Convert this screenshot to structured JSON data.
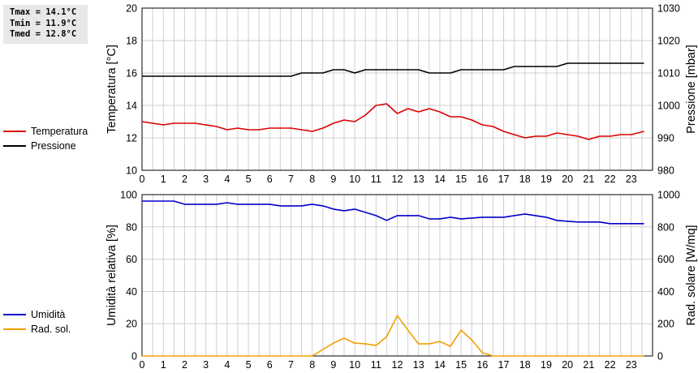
{
  "stats": {
    "tmax": "Tmax = 14.1°C",
    "tmin": "Tmin = 11.9°C",
    "tmed": "Tmed = 12.8°C"
  },
  "legend_top": [
    {
      "label": "Temperatura",
      "color": "#dd0000"
    },
    {
      "label": "Pressione",
      "color": "#000000"
    }
  ],
  "legend_bottom": [
    {
      "label": "Umidità",
      "color": "#0000cc"
    },
    {
      "label": "Rad. sol.",
      "color": "#f0a000"
    }
  ],
  "chart_data": [
    {
      "type": "line",
      "xlabel": "",
      "xlim": [
        0,
        24
      ],
      "xticks": [
        "0",
        "1",
        "2",
        "3",
        "4",
        "5",
        "6",
        "7",
        "8",
        "9",
        "10",
        "11",
        "12",
        "13",
        "14",
        "15",
        "16",
        "17",
        "18",
        "19",
        "20",
        "21",
        "22",
        "23"
      ],
      "ylabel_left": "Temperatura [°C]",
      "ylim_left": [
        10,
        20
      ],
      "yticks_left": [
        "10",
        "12",
        "14",
        "16",
        "18",
        "20"
      ],
      "ylabel_right": "Pressione [mbar]",
      "ylim_right": [
        980,
        1030
      ],
      "yticks_right": [
        "980",
        "990",
        "1000",
        "1010",
        "1020",
        "1030"
      ],
      "grid": true,
      "series": [
        {
          "name": "Temperatura",
          "axis": "left",
          "color": "#dd0000",
          "x": [
            0,
            0.5,
            1,
            1.5,
            2,
            2.5,
            3,
            3.5,
            4,
            4.5,
            5,
            5.5,
            6,
            6.5,
            7,
            7.5,
            8,
            8.5,
            9,
            9.5,
            10,
            10.5,
            11,
            11.5,
            12,
            12.5,
            13,
            13.5,
            14,
            14.5,
            15,
            15.5,
            16,
            16.5,
            17,
            17.5,
            18,
            18.5,
            19,
            19.5,
            20,
            20.5,
            21,
            21.5,
            22,
            22.5,
            23,
            23.6
          ],
          "values": [
            13.0,
            12.9,
            12.8,
            12.9,
            12.9,
            12.9,
            12.8,
            12.7,
            12.5,
            12.6,
            12.5,
            12.5,
            12.6,
            12.6,
            12.6,
            12.5,
            12.4,
            12.6,
            12.9,
            13.1,
            13.0,
            13.4,
            14.0,
            14.1,
            13.5,
            13.8,
            13.6,
            13.8,
            13.6,
            13.3,
            13.3,
            13.1,
            12.8,
            12.7,
            12.4,
            12.2,
            12.0,
            12.1,
            12.1,
            12.3,
            12.2,
            12.1,
            11.9,
            12.1,
            12.1,
            12.2,
            12.2,
            12.4
          ]
        },
        {
          "name": "Pressione",
          "axis": "right",
          "color": "#000000",
          "x": [
            0,
            7,
            7.5,
            8.5,
            9,
            9.5,
            10,
            10.5,
            13,
            13.5,
            14.5,
            15,
            17,
            17.5,
            19.5,
            20,
            23.6
          ],
          "values": [
            1009,
            1009,
            1010,
            1010,
            1011,
            1011,
            1010,
            1011,
            1011,
            1010,
            1010,
            1011,
            1011,
            1012,
            1012,
            1013,
            1013
          ]
        }
      ]
    },
    {
      "type": "line",
      "xlabel": "",
      "xlim": [
        0,
        24
      ],
      "xticks": [
        "0",
        "1",
        "2",
        "3",
        "4",
        "5",
        "6",
        "7",
        "8",
        "9",
        "10",
        "11",
        "12",
        "13",
        "14",
        "15",
        "16",
        "17",
        "18",
        "19",
        "20",
        "21",
        "22",
        "23"
      ],
      "ylabel_left": "Umidità relativa [%]",
      "ylim_left": [
        0,
        100
      ],
      "yticks_left": [
        "0",
        "20",
        "40",
        "60",
        "80",
        "100"
      ],
      "ylabel_right": "Rad. solare [W/mq]",
      "ylim_right": [
        0,
        1000
      ],
      "yticks_right": [
        "0",
        "200",
        "400",
        "600",
        "800",
        "1000"
      ],
      "grid": true,
      "series": [
        {
          "name": "Umidità",
          "axis": "left",
          "color": "#0000cc",
          "x": [
            0,
            1.5,
            2,
            3.5,
            4,
            4.5,
            6,
            6.5,
            7.5,
            8,
            8.5,
            9,
            9.5,
            10,
            11,
            11.5,
            12,
            13,
            13.5,
            14,
            14.5,
            15,
            16,
            17,
            18,
            19,
            19.5,
            20.5,
            21.5,
            22,
            23.6
          ],
          "values": [
            96,
            96,
            94,
            94,
            95,
            94,
            94,
            93,
            93,
            94,
            93,
            91,
            90,
            91,
            87,
            84,
            87,
            87,
            85,
            85,
            86,
            85,
            86,
            86,
            88,
            86,
            84,
            83,
            83,
            82,
            82
          ]
        },
        {
          "name": "Rad. sol.",
          "axis": "right",
          "color": "#f0a000",
          "x": [
            0,
            8,
            8.5,
            9,
            9.5,
            10,
            10.5,
            11,
            11.5,
            12,
            12.5,
            13,
            13.5,
            14,
            14.5,
            15,
            15.5,
            16,
            16.5,
            23.6
          ],
          "values": [
            0,
            0,
            40,
            80,
            110,
            80,
            75,
            65,
            120,
            250,
            160,
            75,
            75,
            90,
            60,
            160,
            100,
            20,
            0,
            0
          ]
        }
      ]
    }
  ]
}
